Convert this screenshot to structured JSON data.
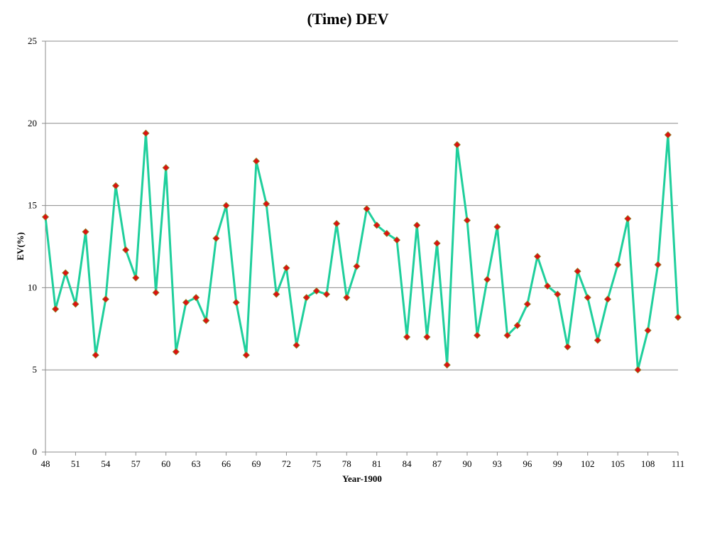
{
  "chart_data": {
    "type": "line",
    "title": "(Time) DEV",
    "xlabel": "Year-1900",
    "ylabel": "EV(%)",
    "xlim": [
      48,
      111
    ],
    "ylim": [
      0,
      25
    ],
    "yticks": [
      0,
      5,
      10,
      15,
      20,
      25
    ],
    "xticks": [
      48,
      51,
      54,
      57,
      60,
      63,
      66,
      69,
      72,
      75,
      78,
      81,
      84,
      87,
      90,
      93,
      96,
      99,
      102,
      105,
      108,
      111
    ],
    "grid": "horizontal",
    "colors": {
      "line": "#1fcf9c",
      "marker": "#dd1111",
      "marker_edge": "#8a8a2a",
      "grid": "#8c8c8c",
      "axis": "#8c8c8c"
    },
    "series": [
      {
        "x": [
          48,
          49,
          50,
          51,
          52,
          53,
          54,
          55,
          56,
          57,
          58,
          59,
          60,
          61,
          62,
          63,
          64,
          65,
          66,
          67,
          68,
          69,
          70,
          71,
          72,
          73,
          74,
          75,
          76,
          77,
          78,
          79,
          80,
          81,
          82,
          83,
          84,
          85,
          86,
          87,
          88,
          89,
          90,
          91,
          92,
          93,
          94,
          95,
          96,
          97,
          98,
          99,
          100,
          101,
          102,
          103,
          104,
          105,
          106,
          107,
          108,
          109,
          110,
          111
        ],
        "values": [
          14.3,
          8.7,
          10.9,
          9.0,
          13.4,
          5.9,
          9.3,
          16.2,
          12.3,
          10.6,
          19.4,
          9.7,
          17.3,
          6.1,
          9.1,
          9.4,
          8.0,
          13.0,
          15.0,
          9.1,
          5.9,
          17.7,
          15.1,
          9.6,
          11.2,
          6.5,
          9.4,
          9.8,
          9.6,
          13.9,
          9.4,
          11.3,
          14.8,
          13.8,
          13.3,
          12.9,
          7.0,
          13.8,
          7.0,
          12.7,
          5.3,
          18.7,
          14.1,
          7.1,
          10.5,
          13.7,
          7.1,
          7.7,
          9.0,
          11.9,
          10.1,
          9.6,
          6.4,
          11.0,
          9.4,
          6.8,
          9.3,
          11.4,
          14.2,
          5.0,
          7.4,
          11.4,
          19.3,
          8.2
        ]
      }
    ]
  }
}
